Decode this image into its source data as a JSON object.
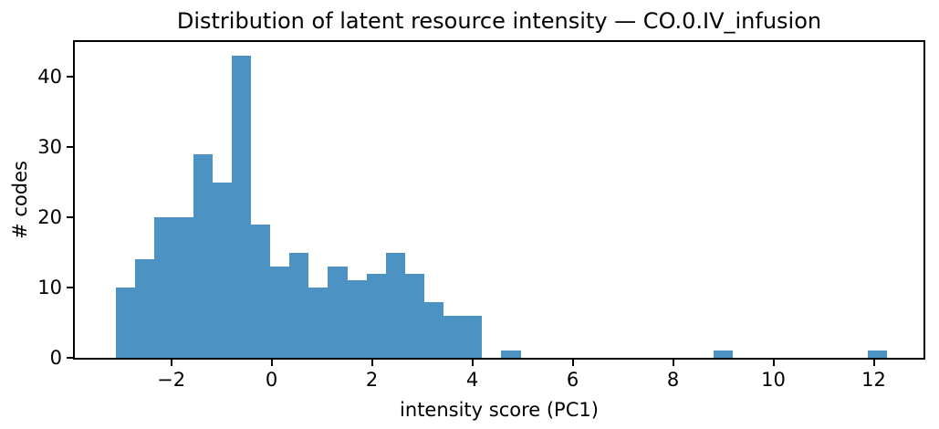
{
  "chart_data": {
    "type": "histogram",
    "title": "Distribution of latent resource intensity — CO.0.IV_infusion",
    "xlabel": "intensity score (PC1)",
    "ylabel": "# codes",
    "bin_start": -3.1,
    "bin_width": 0.384,
    "counts": [
      10,
      14,
      20,
      20,
      29,
      25,
      43,
      19,
      13,
      15,
      10,
      13,
      11,
      12,
      15,
      12,
      8,
      6,
      6,
      0,
      1,
      0,
      0,
      0,
      0,
      0,
      0,
      0,
      0,
      0,
      0,
      1,
      0,
      0,
      0,
      0,
      0,
      0,
      0,
      1
    ],
    "xlim": [
      -3.92,
      12.99
    ],
    "ylim": [
      0,
      45
    ],
    "xticks": [
      -2,
      0,
      2,
      4,
      6,
      8,
      10,
      12
    ],
    "xtick_labels": [
      "−2",
      "0",
      "2",
      "4",
      "6",
      "8",
      "10",
      "12"
    ],
    "yticks": [
      0,
      10,
      20,
      30,
      40
    ],
    "ytick_labels": [
      "0",
      "10",
      "20",
      "30",
      "40"
    ],
    "grid": false,
    "legend": "none",
    "bar_color": "#4c92c3",
    "axis_color": "#000000",
    "background_color": "#ffffff"
  }
}
